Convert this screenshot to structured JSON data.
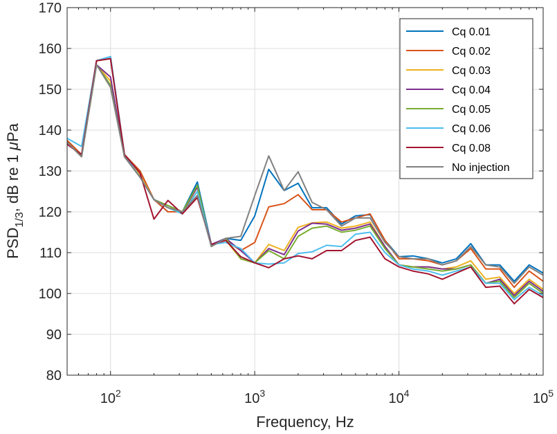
{
  "chart_data": {
    "type": "line",
    "xscale": "log",
    "xlabel": "Frequency, Hz",
    "ylabel": {
      "main": "PSD",
      "sub": "1/3",
      "rest": ", dB re 1 ",
      "mu": "μ",
      "unit": "Pa"
    },
    "xlim": [
      50,
      100000
    ],
    "ylim": [
      80,
      170
    ],
    "grid": true,
    "legend_position": "top-right",
    "x_ticks": [
      {
        "value": 100,
        "base": "10",
        "exp": "2"
      },
      {
        "value": 1000,
        "base": "10",
        "exp": "3"
      },
      {
        "value": 10000,
        "base": "10",
        "exp": "4"
      },
      {
        "value": 100000,
        "base": "10",
        "exp": "5"
      }
    ],
    "y_ticks": [
      80,
      90,
      100,
      110,
      120,
      130,
      140,
      150,
      160,
      170
    ],
    "x": [
      50,
      63,
      80,
      100,
      125,
      160,
      200,
      250,
      315,
      400,
      500,
      630,
      800,
      1000,
      1250,
      1600,
      2000,
      2500,
      3150,
      4000,
      5000,
      6300,
      8000,
      10000,
      12500,
      16000,
      20000,
      25000,
      31500,
      40000,
      50000,
      63000,
      80000,
      100000
    ],
    "series": [
      {
        "name": "Cq 0.01",
        "color": "#0072BD",
        "values": [
          137.5,
          134,
          157,
          158,
          134,
          130,
          123,
          120,
          120,
          127.3,
          112,
          113.5,
          113,
          119,
          130.4,
          125.2,
          127,
          121,
          121,
          117,
          119,
          119.3,
          113,
          109,
          109.2,
          108.5,
          107.5,
          108.5,
          112.2,
          107,
          107,
          103,
          107,
          105
        ]
      },
      {
        "name": "Cq 0.02",
        "color": "#D95319",
        "values": [
          137.5,
          134,
          157,
          157.5,
          134,
          130,
          123,
          120,
          120,
          123.5,
          112,
          113,
          110.5,
          112.5,
          121.2,
          122,
          124.2,
          120.5,
          120.5,
          117.5,
          118.5,
          119.5,
          113,
          108.5,
          108.5,
          108,
          107,
          108,
          111,
          106,
          106,
          101.5,
          105.5,
          103
        ]
      },
      {
        "name": "Cq 0.03",
        "color": "#EDB120",
        "values": [
          137,
          133.5,
          156,
          152,
          133.5,
          129,
          123,
          121.5,
          120,
          125,
          112,
          113,
          108.5,
          107.5,
          112,
          110.5,
          116.2,
          117.3,
          117.5,
          116,
          116.5,
          117.5,
          111.5,
          107,
          106.5,
          106.5,
          106,
          106.5,
          108,
          103.5,
          104,
          100,
          103.5,
          101
        ]
      },
      {
        "name": "Cq 0.04",
        "color": "#7E2F8E",
        "values": [
          137,
          133.5,
          156,
          153,
          133.5,
          128.5,
          123,
          121.5,
          120,
          126,
          112,
          113.5,
          110.5,
          107.5,
          111,
          109.5,
          115.3,
          117.2,
          117,
          115.5,
          116,
          117,
          111.5,
          107,
          106.5,
          106.5,
          106,
          106,
          107,
          102.5,
          103.5,
          99.5,
          103,
          100.5
        ]
      },
      {
        "name": "Cq 0.05",
        "color": "#77AC30",
        "values": [
          137,
          133.5,
          156,
          151,
          133.5,
          128.5,
          123,
          121.5,
          120,
          126.5,
          111.5,
          113.5,
          108.5,
          107.5,
          110.5,
          108.5,
          114,
          116,
          116.5,
          115,
          115.5,
          116.5,
          111,
          107,
          106.5,
          106,
          105.5,
          106,
          107,
          102.5,
          103,
          99,
          102.5,
          100
        ]
      },
      {
        "name": "Cq 0.06",
        "color": "#4DBEEE",
        "values": [
          138,
          136,
          157,
          158,
          134,
          128.5,
          123,
          121,
          119.5,
          125,
          112,
          112.5,
          111,
          107.5,
          107.2,
          107.5,
          109.8,
          110.2,
          111.8,
          111.5,
          114.5,
          115,
          110,
          107,
          106,
          105.5,
          104.5,
          105.5,
          106.5,
          102.5,
          102.5,
          98.5,
          101.5,
          99.5
        ]
      },
      {
        "name": "Cq 0.08",
        "color": "#A2142F",
        "values": [
          136.5,
          134,
          157,
          157.5,
          134,
          129.5,
          118.2,
          122.8,
          119.5,
          123.5,
          112,
          113,
          109,
          107.5,
          106.3,
          108.5,
          109.2,
          108.5,
          110.5,
          110.5,
          113,
          113.8,
          108.5,
          106.5,
          105.5,
          104.8,
          103.5,
          105,
          106.5,
          101.5,
          101.8,
          97.5,
          101,
          99
        ]
      },
      {
        "name": "No injection",
        "color": "#808080",
        "values": [
          137,
          133.5,
          156,
          150.5,
          133.5,
          128.5,
          123,
          121,
          120,
          124,
          111.5,
          113.5,
          114,
          124,
          133.7,
          125.2,
          129.8,
          122.3,
          120.5,
          116.5,
          118.5,
          118.5,
          112.5,
          109,
          108.5,
          108.5,
          107,
          108,
          111.5,
          107,
          106.5,
          102.5,
          106.5,
          104.5
        ]
      }
    ]
  }
}
